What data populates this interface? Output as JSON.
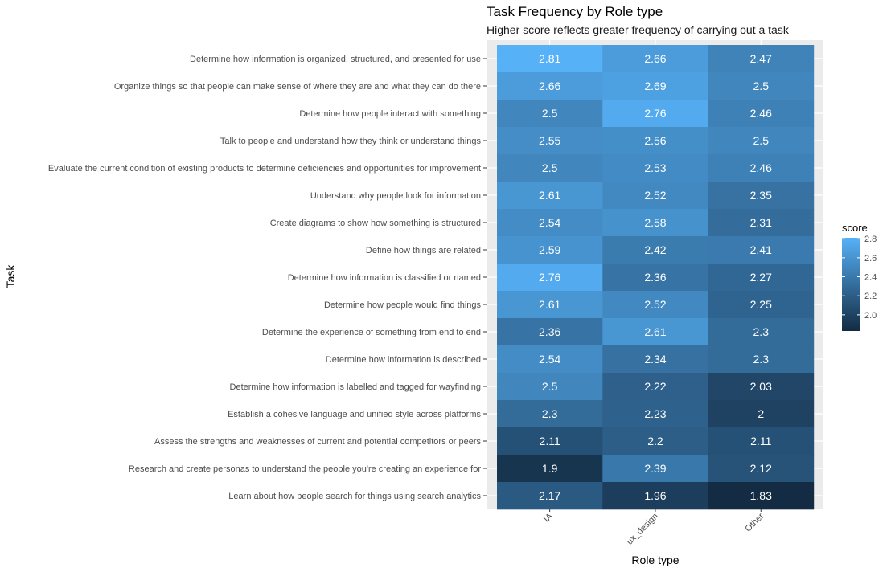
{
  "chart_data": {
    "type": "heatmap",
    "title": "Task Frequency by Role type",
    "subtitle": "Higher score reflects greater frequency of carrying out a task",
    "xlabel": "Role type",
    "ylabel": "Task",
    "x_categories": [
      "IA",
      "ux_design",
      "Other"
    ],
    "y_categories": [
      "Determine how information is organized, structured, and presented for use",
      "Organize things so that people can make sense of where they are and what they can do there",
      "Determine how people interact with something",
      "Talk to people and understand how they think or understand things",
      "Evaluate the current condition of existing products to determine deficiencies and opportunities for improvement",
      "Understand why people look for information",
      "Create diagrams to show how something is structured",
      "Define how things are related",
      "Determine how information is classified or named",
      "Determine how people would find things",
      "Determine the experience of something from end to end",
      "Determine how information is described",
      "Determine how information is labelled and tagged for wayfinding",
      "Establish a cohesive language and unified style across platforms",
      "Assess the strengths and weaknesses of current and potential competitors or peers",
      "Research and create personas to understand the people you're creating an experience for",
      "Learn about how people search for things using search analytics"
    ],
    "values": [
      [
        2.81,
        2.66,
        2.47
      ],
      [
        2.66,
        2.69,
        2.5
      ],
      [
        2.5,
        2.76,
        2.46
      ],
      [
        2.55,
        2.56,
        2.5
      ],
      [
        2.5,
        2.53,
        2.46
      ],
      [
        2.61,
        2.52,
        2.35
      ],
      [
        2.54,
        2.58,
        2.31
      ],
      [
        2.59,
        2.42,
        2.41
      ],
      [
        2.76,
        2.36,
        2.27
      ],
      [
        2.61,
        2.52,
        2.25
      ],
      [
        2.36,
        2.61,
        2.3
      ],
      [
        2.54,
        2.34,
        2.3
      ],
      [
        2.5,
        2.22,
        2.03
      ],
      [
        2.3,
        2.23,
        2
      ],
      [
        2.11,
        2.2,
        2.11
      ],
      [
        1.9,
        2.39,
        2.12
      ],
      [
        2.17,
        1.96,
        1.83
      ]
    ],
    "value_labels": [
      [
        "2.81",
        "2.66",
        "2.47"
      ],
      [
        "2.66",
        "2.69",
        "2.5"
      ],
      [
        "2.5",
        "2.76",
        "2.46"
      ],
      [
        "2.55",
        "2.56",
        "2.5"
      ],
      [
        "2.5",
        "2.53",
        "2.46"
      ],
      [
        "2.61",
        "2.52",
        "2.35"
      ],
      [
        "2.54",
        "2.58",
        "2.31"
      ],
      [
        "2.59",
        "2.42",
        "2.41"
      ],
      [
        "2.76",
        "2.36",
        "2.27"
      ],
      [
        "2.61",
        "2.52",
        "2.25"
      ],
      [
        "2.36",
        "2.61",
        "2.3"
      ],
      [
        "2.54",
        "2.34",
        "2.3"
      ],
      [
        "2.5",
        "2.22",
        "2.03"
      ],
      [
        "2.3",
        "2.23",
        "2"
      ],
      [
        "2.11",
        "2.2",
        "2.11"
      ],
      [
        "1.9",
        "2.39",
        "2.12"
      ],
      [
        "2.17",
        "1.96",
        "1.83"
      ]
    ],
    "legend": {
      "title": "score",
      "placement": "right",
      "breaks": [
        2.0,
        2.2,
        2.4,
        2.6,
        2.8
      ],
      "break_labels": [
        "2.0",
        "2.2",
        "2.4",
        "2.6",
        "2.8"
      ],
      "low_color": "#132B43",
      "high_color": "#56B1F7"
    },
    "panel_background": "#EBEBEB",
    "grid": true
  }
}
